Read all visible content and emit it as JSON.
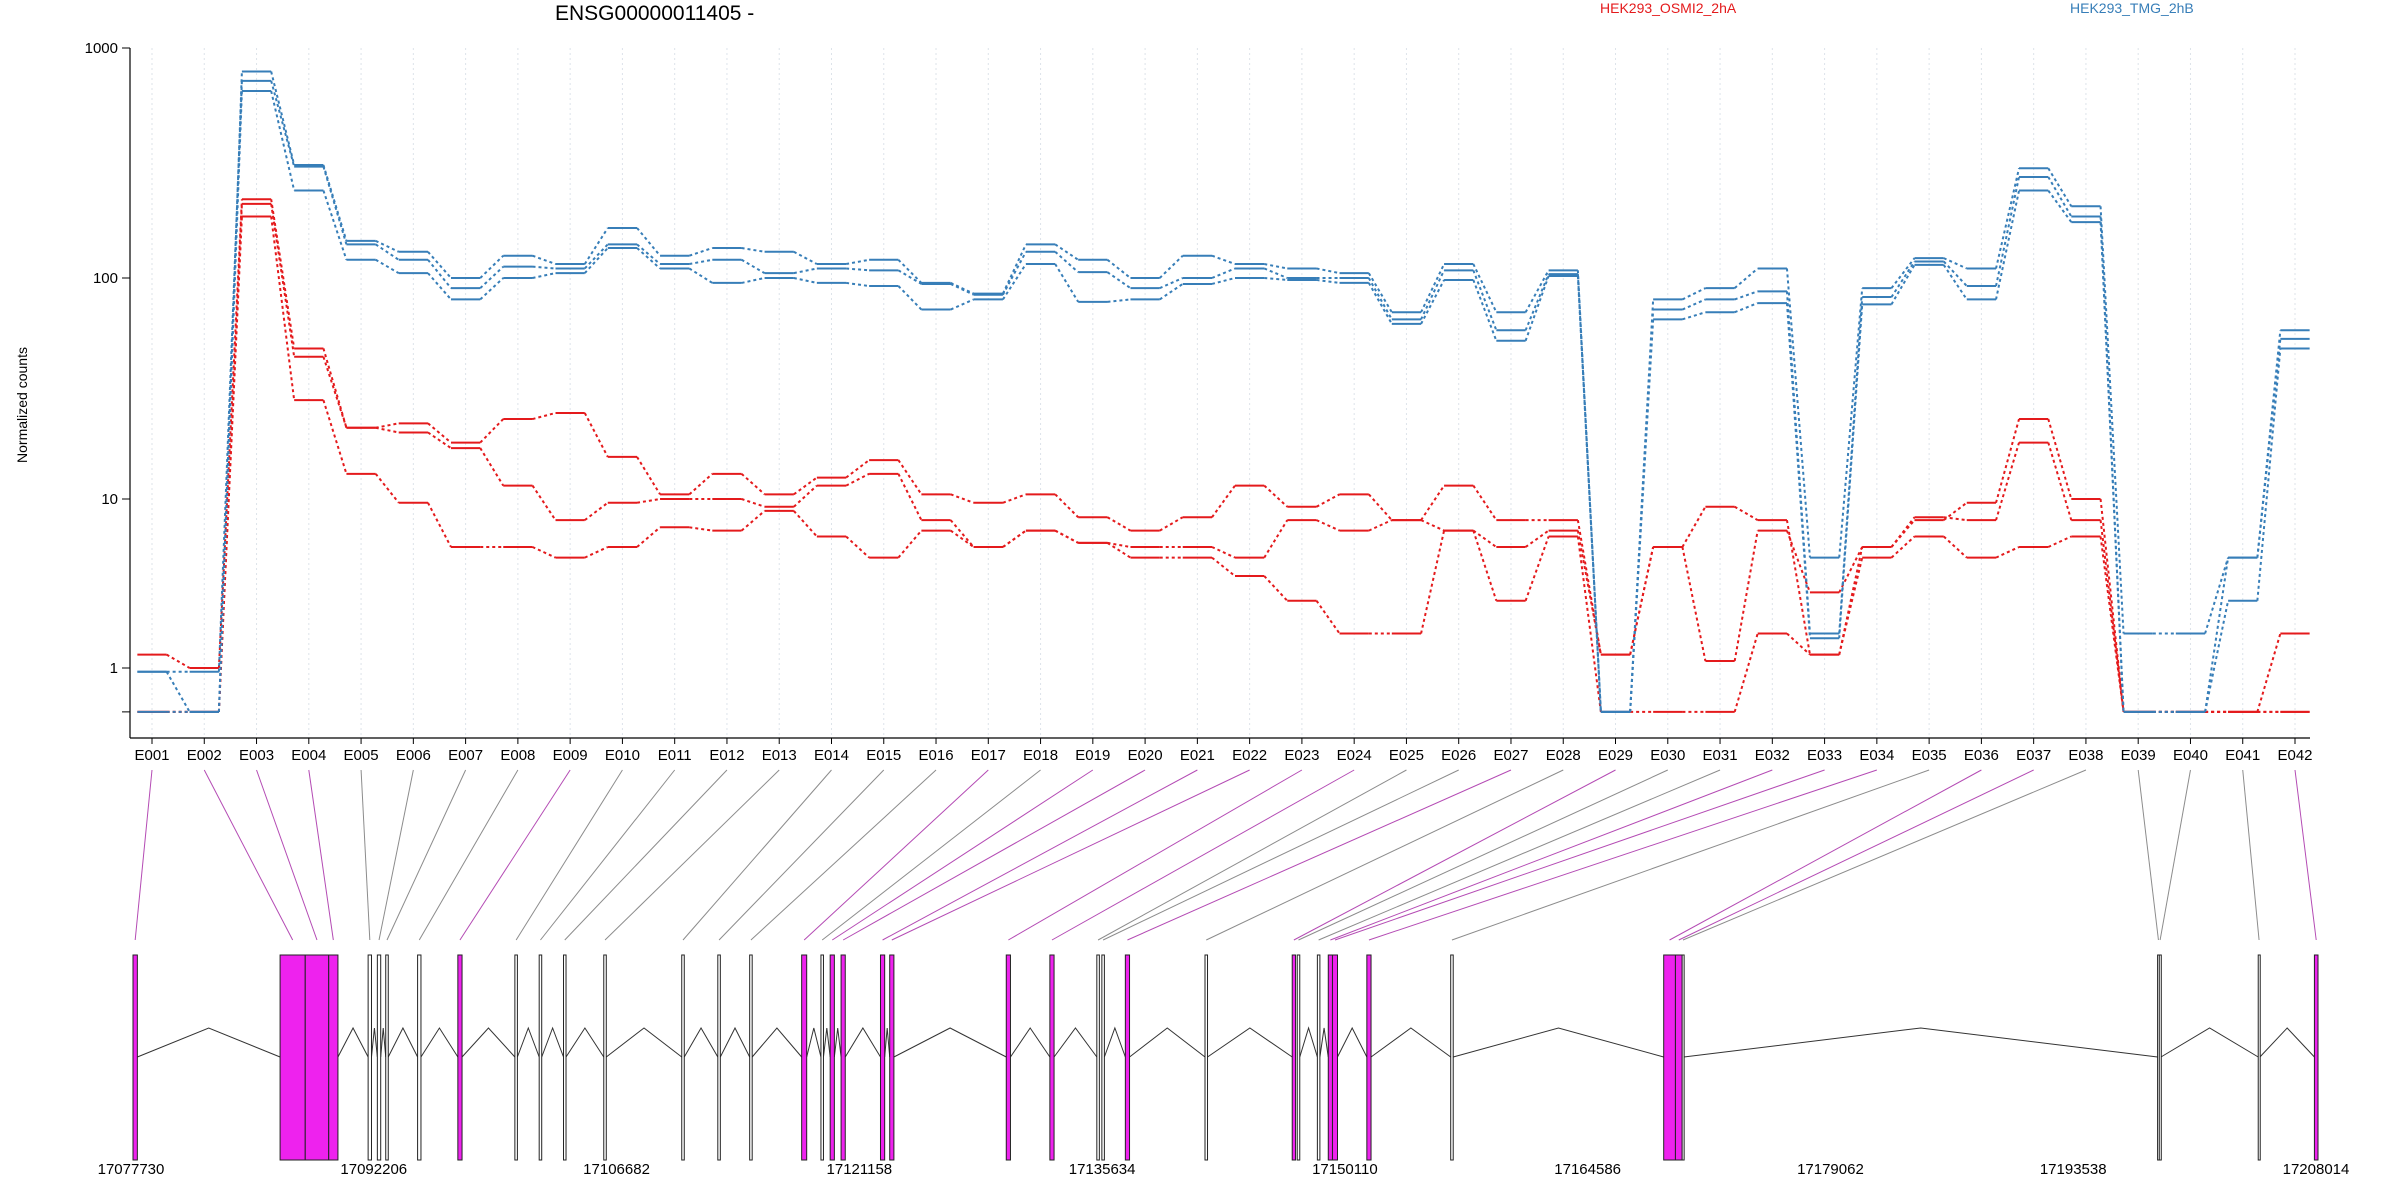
{
  "chart_data": [
    {
      "type": "line",
      "title": "ENSG00000011405 -",
      "ylabel": "Normalized counts",
      "xlabel": "",
      "yscale": "log",
      "ylim": [
        0.55,
        1000
      ],
      "yticks": [
        "1000",
        "100",
        "10",
        "1"
      ],
      "categories": [
        "E001",
        "E002",
        "E003",
        "E004",
        "E005",
        "E006",
        "E007",
        "E008",
        "E009",
        "E010",
        "E011",
        "E012",
        "E013",
        "E014",
        "E015",
        "E016",
        "E017",
        "E018",
        "E019",
        "E020",
        "E021",
        "E022",
        "E023",
        "E024",
        "E025",
        "E026",
        "E027",
        "E028",
        "E029",
        "E030",
        "E031",
        "E032",
        "E033",
        "E034",
        "E035",
        "E036",
        "E037",
        "E038",
        "E039",
        "E040",
        "E041",
        "E042"
      ],
      "legend": [
        "HEK293_OSMI2_2hA",
        "HEK293_TMG_2hB"
      ],
      "colors": {
        "HEK293_OSMI2_2hA": "#e41a1c",
        "HEK293_TMG_2hB": "#377eb8"
      },
      "series": [
        {
          "group": "HEK293_OSMI2_2hA",
          "values": [
            1.2,
            1.0,
            220,
            48,
            21,
            22,
            18,
            23,
            24.5,
            15.5,
            10.5,
            13,
            10.5,
            12.5,
            15,
            10.5,
            9.5,
            10.5,
            7.8,
            6.5,
            7.8,
            11.5,
            9,
            10.5,
            7.5,
            11.5,
            7.5,
            7.5,
            1.2,
            5.2,
            9,
            7.5,
            1.2,
            5.2,
            7.5,
            9.5,
            23,
            10,
            0.55,
            0.55,
            0.55,
            0.55
          ]
        },
        {
          "group": "HEK293_OSMI2_2hA",
          "values": [
            0.55,
            0.55,
            210,
            44,
            21,
            20,
            17,
            11.5,
            7.5,
            9.5,
            10,
            10,
            9,
            11.5,
            13,
            7.5,
            5.2,
            6.5,
            5.5,
            5.2,
            5.2,
            4.5,
            7.5,
            6.5,
            7.5,
            6.5,
            5.2,
            6.5,
            1.2,
            5.2,
            1.1,
            6.5,
            2.8,
            5.2,
            7.8,
            7.5,
            18,
            7.5,
            0.55,
            0.55,
            0.55,
            1.6
          ]
        },
        {
          "group": "HEK293_OSMI2_2hA",
          "values": [
            0.55,
            0.55,
            185,
            28,
            13,
            9.5,
            5.2,
            5.2,
            4.5,
            5.2,
            6.8,
            6.5,
            8.5,
            6,
            4.5,
            6.5,
            5.2,
            6.5,
            5.5,
            4.5,
            4.5,
            3.5,
            2.5,
            1.6,
            1.6,
            6.5,
            2.5,
            6,
            0.55,
            0.55,
            0.55,
            1.6,
            1.2,
            4.5,
            6,
            4.5,
            5.2,
            6,
            0.55,
            0.55,
            0.55,
            0.55
          ]
        },
        {
          "group": "HEK293_TMG_2hB",
          "values": [
            0.95,
            0.55,
            790,
            310,
            145,
            130,
            100,
            125,
            115,
            165,
            125,
            135,
            130,
            115,
            120,
            95,
            85,
            140,
            120,
            100,
            125,
            115,
            110,
            105,
            70,
            115,
            70,
            108,
            0.55,
            80,
            90,
            110,
            4.5,
            90,
            122,
            110,
            300,
            205,
            1.6,
            1.6,
            4.5,
            58
          ]
        },
        {
          "group": "HEK293_TMG_2hB",
          "values": [
            0.95,
            0.95,
            720,
            305,
            140,
            120,
            90,
            112,
            110,
            140,
            115,
            120,
            105,
            110,
            108,
            94,
            84,
            130,
            106,
            90,
            100,
            110,
            100,
            100,
            65,
            108,
            58,
            104,
            0.55,
            72,
            80,
            87,
            1.6,
            82,
            118,
            92,
            275,
            185,
            0.55,
            0.55,
            4.5,
            53
          ]
        },
        {
          "group": "HEK293_TMG_2hB",
          "values": [
            0.55,
            0.55,
            650,
            240,
            120,
            105,
            80,
            100,
            105,
            135,
            110,
            95,
            100,
            95,
            92,
            72,
            80,
            115,
            78,
            80,
            94,
            100,
            98,
            95,
            62,
            98,
            52,
            102,
            0.55,
            65,
            70,
            77,
            1.5,
            76,
            114,
            80,
            240,
            175,
            0.55,
            0.55,
            2.5,
            48
          ]
        }
      ]
    },
    {
      "type": "gene-model",
      "x_range": [
        17077730,
        17208014
      ],
      "xticks": [
        "17077730",
        "17092206",
        "17106682",
        "17121158",
        "17135634",
        "17150110",
        "17164586",
        "17179062",
        "17193538",
        "17208014"
      ],
      "highlight_color": "#ee22ee",
      "exons": [
        {
          "id": "E001",
          "start": 17077730,
          "end": 17077990,
          "highlighted": true
        },
        {
          "id": "E002",
          "start": 17086500,
          "end": 17088000,
          "highlighted": true
        },
        {
          "id": "E003",
          "start": 17088000,
          "end": 17089400,
          "highlighted": true
        },
        {
          "id": "E004",
          "start": 17089400,
          "end": 17089950,
          "highlighted": true
        },
        {
          "id": "E005",
          "start": 17091750,
          "end": 17091950,
          "highlighted": false
        },
        {
          "id": "E006",
          "start": 17092300,
          "end": 17092500,
          "highlighted": false
        },
        {
          "id": "E007",
          "start": 17092800,
          "end": 17092950,
          "highlighted": false
        },
        {
          "id": "E008",
          "start": 17094700,
          "end": 17094900,
          "highlighted": false
        },
        {
          "id": "E009",
          "start": 17097100,
          "end": 17097350,
          "highlighted": true
        },
        {
          "id": "E010",
          "start": 17100500,
          "end": 17100650,
          "highlighted": false
        },
        {
          "id": "E011",
          "start": 17101950,
          "end": 17102100,
          "highlighted": false
        },
        {
          "id": "E012",
          "start": 17103400,
          "end": 17103550,
          "highlighted": false
        },
        {
          "id": "E013",
          "start": 17105800,
          "end": 17105950,
          "highlighted": false
        },
        {
          "id": "E014",
          "start": 17110450,
          "end": 17110600,
          "highlighted": false
        },
        {
          "id": "E015",
          "start": 17112600,
          "end": 17112750,
          "highlighted": false
        },
        {
          "id": "E016",
          "start": 17114500,
          "end": 17114650,
          "highlighted": false
        },
        {
          "id": "E017",
          "start": 17117600,
          "end": 17117900,
          "highlighted": true
        },
        {
          "id": "E018",
          "start": 17118750,
          "end": 17118900,
          "highlighted": false
        },
        {
          "id": "E019",
          "start": 17119300,
          "end": 17119550,
          "highlighted": true
        },
        {
          "id": "E020",
          "start": 17119950,
          "end": 17120200,
          "highlighted": true
        },
        {
          "id": "E021",
          "start": 17122300,
          "end": 17122550,
          "highlighted": true
        },
        {
          "id": "E022",
          "start": 17122850,
          "end": 17123100,
          "highlighted": true
        },
        {
          "id": "E023",
          "start": 17129800,
          "end": 17130050,
          "highlighted": true
        },
        {
          "id": "E024",
          "start": 17132400,
          "end": 17132650,
          "highlighted": true
        },
        {
          "id": "E025",
          "start": 17135200,
          "end": 17135350,
          "highlighted": false
        },
        {
          "id": "E026",
          "start": 17135500,
          "end": 17135650,
          "highlighted": false
        },
        {
          "id": "E027",
          "start": 17136900,
          "end": 17137150,
          "highlighted": true
        },
        {
          "id": "E028",
          "start": 17141650,
          "end": 17141800,
          "highlighted": false
        },
        {
          "id": "E029",
          "start": 17146850,
          "end": 17147050,
          "highlighted": true
        },
        {
          "id": "E030",
          "start": 17147150,
          "end": 17147300,
          "highlighted": false
        },
        {
          "id": "E031",
          "start": 17148350,
          "end": 17148500,
          "highlighted": false
        },
        {
          "id": "E032",
          "start": 17149000,
          "end": 17149250,
          "highlighted": true
        },
        {
          "id": "E033",
          "start": 17149250,
          "end": 17149550,
          "highlighted": true
        },
        {
          "id": "E034",
          "start": 17151300,
          "end": 17151550,
          "highlighted": true
        },
        {
          "id": "E035",
          "start": 17156300,
          "end": 17156450,
          "highlighted": false
        },
        {
          "id": "E036",
          "start": 17169000,
          "end": 17169700,
          "highlighted": true
        },
        {
          "id": "E037",
          "start": 17169700,
          "end": 17170100,
          "highlighted": true
        },
        {
          "id": "E038",
          "start": 17170100,
          "end": 17170200,
          "highlighted": false
        },
        {
          "id": "E039",
          "start": 17198450,
          "end": 17198550,
          "highlighted": false
        },
        {
          "id": "E040",
          "start": 17198550,
          "end": 17198650,
          "highlighted": false
        },
        {
          "id": "E041",
          "start": 17204450,
          "end": 17204550,
          "highlighted": false
        },
        {
          "id": "E042",
          "start": 17207800,
          "end": 17208014,
          "highlighted": true
        }
      ]
    }
  ]
}
